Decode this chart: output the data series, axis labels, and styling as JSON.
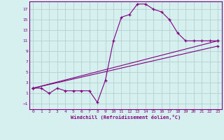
{
  "xlabel": "Windchill (Refroidissement éolien,°C)",
  "background_color": "#d6f0f0",
  "line_color": "#800080",
  "grid_color": "#b0c8c8",
  "xlim": [
    -0.5,
    23.5
  ],
  "ylim": [
    -2,
    18.5
  ],
  "xticks": [
    0,
    1,
    2,
    3,
    4,
    5,
    6,
    7,
    8,
    9,
    10,
    11,
    12,
    13,
    14,
    15,
    16,
    17,
    18,
    19,
    20,
    21,
    22,
    23
  ],
  "yticks": [
    -1,
    1,
    3,
    5,
    7,
    9,
    11,
    13,
    15,
    17
  ],
  "main_line_x": [
    0,
    1,
    2,
    3,
    4,
    5,
    6,
    7,
    8,
    9,
    10,
    11,
    12,
    13,
    14,
    15,
    16,
    17,
    18,
    19,
    20,
    21,
    22,
    23
  ],
  "main_line_y": [
    2.0,
    2.0,
    1.0,
    2.0,
    1.5,
    1.5,
    1.5,
    1.5,
    -0.7,
    3.5,
    11,
    15.5,
    16,
    18,
    18,
    17,
    16.5,
    15,
    12.5,
    11,
    11,
    11,
    11,
    11
  ],
  "line2_x": [
    0,
    23
  ],
  "line2_y": [
    2.0,
    11.0
  ],
  "line3_x": [
    0,
    23
  ],
  "line3_y": [
    2.0,
    10.0
  ]
}
